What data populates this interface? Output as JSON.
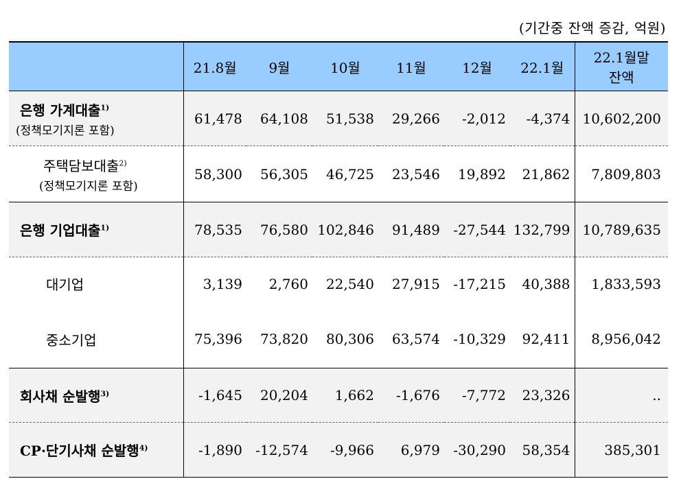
{
  "unit_note": "(기간중 잔액 증감, 억원)",
  "headers": [
    "21.8월",
    "9월",
    "10월",
    "11월",
    "12월",
    "22.1월",
    "22.1월말",
    "잔액"
  ],
  "rows": [
    {
      "label": "은행 가계대출",
      "sup": "1)",
      "note": "(정책모기지론 포함)",
      "values": [
        "61,478",
        "64,108",
        "51,538",
        "29,266",
        "-2,012",
        "-4,374",
        "10,602,200"
      ]
    },
    {
      "label": "주택담보대출",
      "sup": "2)",
      "note": "(정책모기지론 포함)",
      "values": [
        "58,300",
        "56,305",
        "46,725",
        "23,546",
        "19,892",
        "21,862",
        "7,809,803"
      ]
    },
    {
      "label": "은행 기업대출",
      "sup": "1)",
      "values": [
        "78,535",
        "76,580",
        "102,846",
        "91,489",
        "-27,544",
        "132,799",
        "10,789,635"
      ]
    },
    {
      "label": "대기업",
      "values": [
        "3,139",
        "2,760",
        "22,540",
        "27,915",
        "-17,215",
        "40,388",
        "1,833,593"
      ]
    },
    {
      "label": "중소기업",
      "values": [
        "75,396",
        "73,820",
        "80,306",
        "63,574",
        "-10,329",
        "92,411",
        "8,956,042"
      ]
    },
    {
      "label": "회사채 순발행",
      "sup": "3)",
      "values": [
        "-1,645",
        "20,204",
        "1,662",
        "-1,676",
        "-7,772",
        "23,326",
        ".."
      ]
    },
    {
      "label": "CP·단기사채 순발행",
      "sup": "4)",
      "values": [
        "-1,890",
        "-12,574",
        "-9,966",
        "6,979",
        "-30,290",
        "58,354",
        "385,301"
      ]
    }
  ]
}
